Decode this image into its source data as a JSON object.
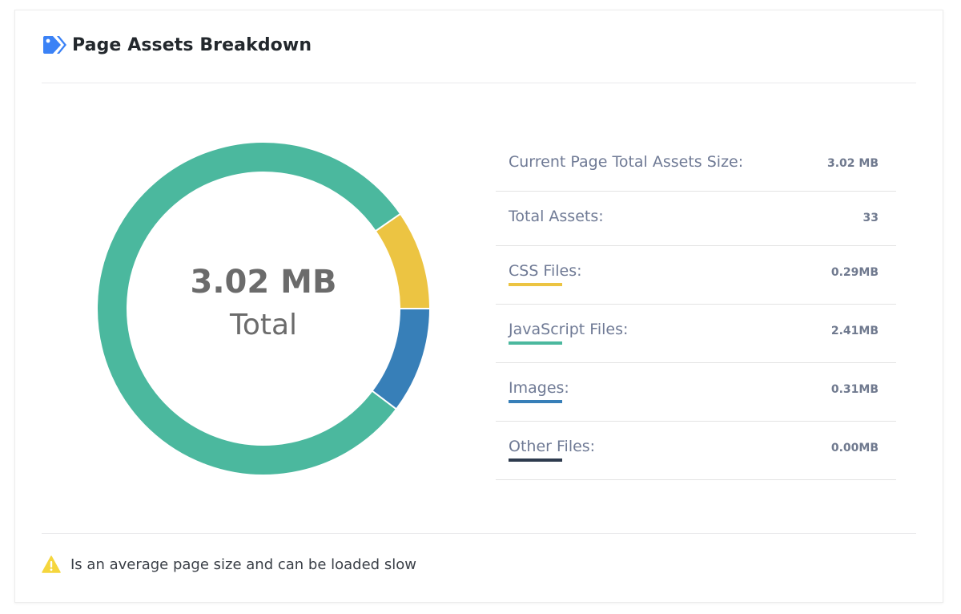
{
  "header": {
    "title": "Page Assets Breakdown",
    "icon": "tag-icon",
    "icon_color": "#3b82f6"
  },
  "summary": {
    "value": "3.02 MB",
    "sub": "Total"
  },
  "stats": {
    "total_size_label": "Current Page Total Assets Size:",
    "total_size_value": "3.02 MB",
    "total_assets_label": "Total Assets:",
    "total_assets_value": "33",
    "categories": [
      {
        "label": "CSS Files:",
        "value": "0.29MB",
        "color": "#ecc442"
      },
      {
        "label": "JavaScript Files:",
        "value": "2.41MB",
        "color": "#4bb89e"
      },
      {
        "label": "Images:",
        "value": "0.31MB",
        "color": "#377fb8"
      },
      {
        "label": "Other Files:",
        "value": "0.00MB",
        "color": "#2e3b4e"
      }
    ]
  },
  "chart_data": {
    "type": "pie",
    "categories": [
      "JavaScript Files",
      "Images",
      "CSS Files",
      "Other Files"
    ],
    "values": [
      2.41,
      0.31,
      0.29,
      0.0
    ],
    "colors": [
      "#4bb89e",
      "#377fb8",
      "#ecc442",
      "#2e3b4e"
    ],
    "start_category": "CSS Files",
    "start_angle_deg": 90
  },
  "footer": {
    "icon": "warning-icon",
    "text": "Is an average page size and can be loaded slow"
  }
}
